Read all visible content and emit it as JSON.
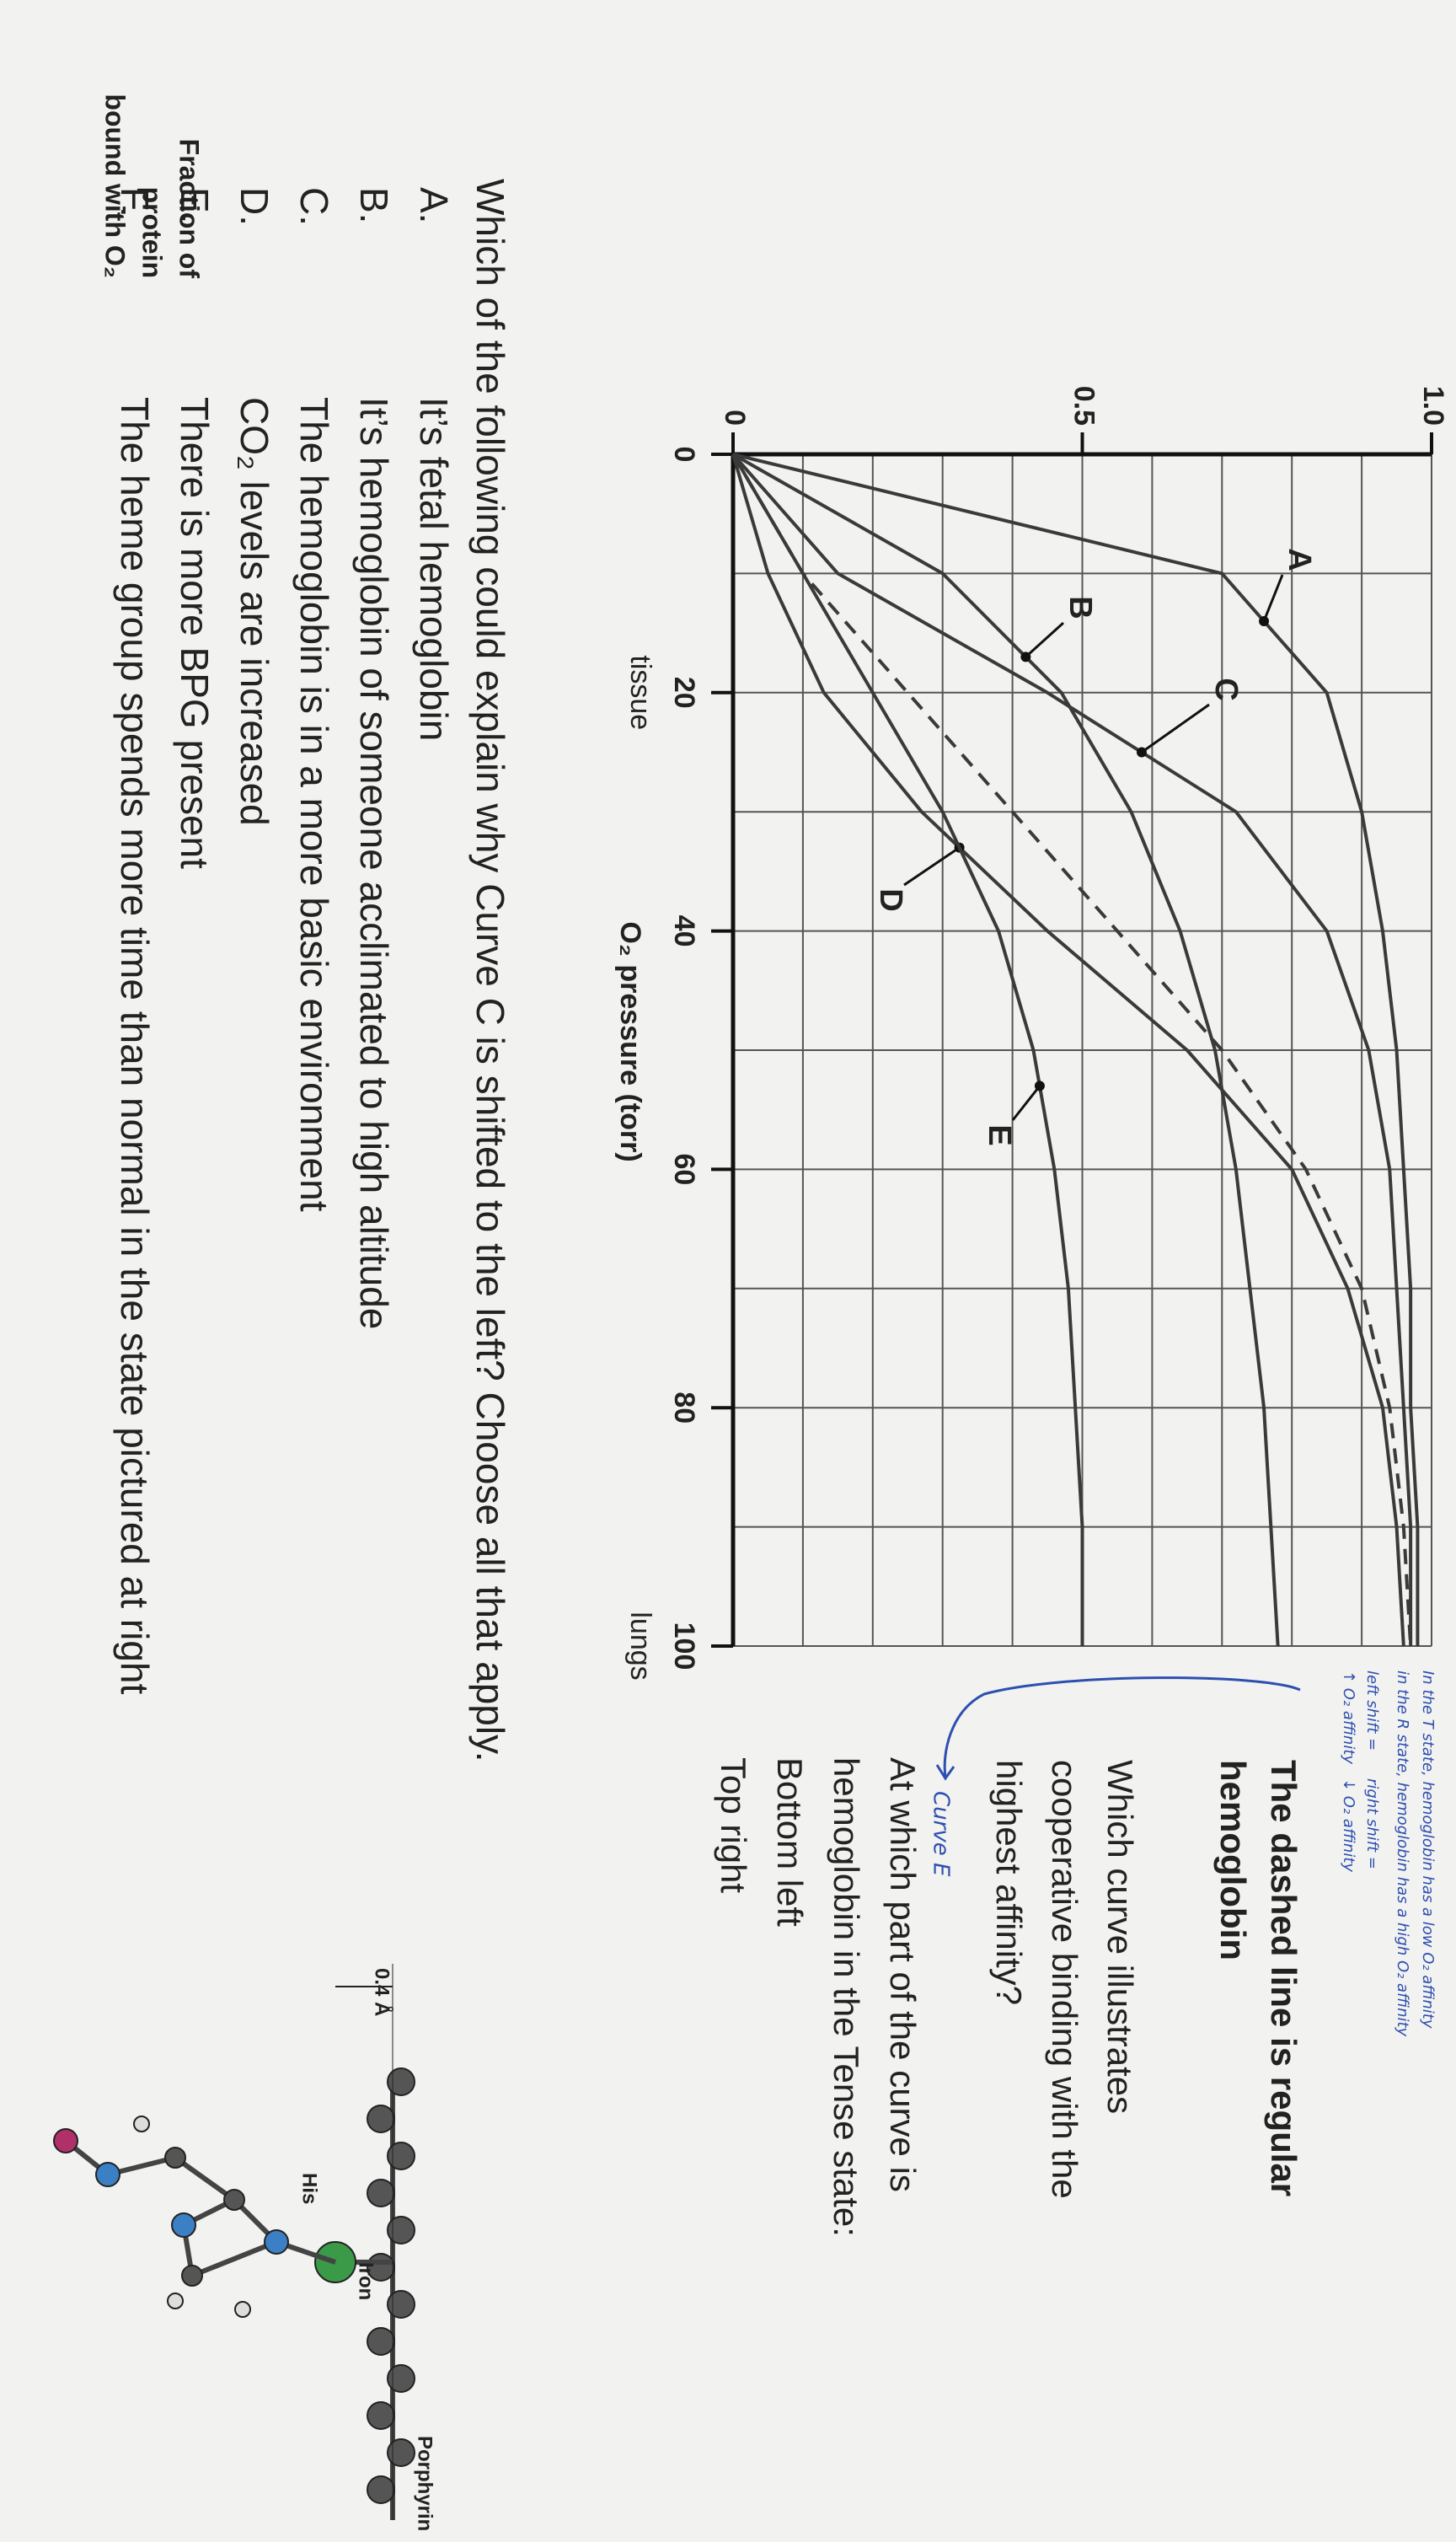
{
  "chart_data": {
    "type": "line",
    "y_label": [
      "Fraction of",
      "protein",
      "bound with O₂"
    ],
    "x_label": "O₂ pressure (torr)",
    "x": [
      0,
      10,
      20,
      30,
      40,
      50,
      60,
      70,
      80,
      90,
      100
    ],
    "xlim": [
      0,
      100
    ],
    "xticks": [
      0,
      20,
      40,
      60,
      80,
      100
    ],
    "ylim": [
      0,
      1
    ],
    "yticks": [
      0,
      0.5,
      {
        "value": 1,
        "label": "1.0"
      }
    ],
    "grid": true,
    "annotations": [
      {
        "text": "tissue",
        "x": 20
      },
      {
        "text": "lungs",
        "x": 100
      }
    ],
    "series": [
      {
        "name": "A",
        "color": "#3a3a3a",
        "values": [
          0,
          0.7,
          0.85,
          0.9,
          0.93,
          0.95,
          0.96,
          0.97,
          0.97,
          0.98,
          0.98
        ]
      },
      {
        "name": "B",
        "color": "#3a3a3a",
        "values": [
          0,
          0.3,
          0.47,
          0.57,
          0.64,
          0.69,
          0.72,
          0.74,
          0.76,
          0.77,
          0.78
        ]
      },
      {
        "name": "C",
        "color": "#3a3a3a",
        "values": [
          0,
          0.15,
          0.45,
          0.72,
          0.85,
          0.91,
          0.94,
          0.95,
          0.96,
          0.97,
          0.97
        ]
      },
      {
        "name": "D",
        "color": "#3a3a3a",
        "values": [
          0,
          0.05,
          0.13,
          0.27,
          0.45,
          0.65,
          0.8,
          0.88,
          0.93,
          0.95,
          0.96
        ]
      },
      {
        "name": "E",
        "color": "#3a3a3a",
        "values": [
          0,
          0.1,
          0.2,
          0.3,
          0.38,
          0.43,
          0.46,
          0.48,
          0.49,
          0.5,
          0.5
        ]
      },
      {
        "color": "#3a3a3a",
        "dashed": true,
        "values": [
          0,
          0.1,
          0.25,
          0.4,
          0.55,
          0.7,
          0.82,
          0.9,
          0.94,
          0.96,
          0.97
        ]
      }
    ]
  },
  "notes": {
    "handwritten": [
      "In the T state, hemoglobin has a low O₂ affinity",
      "in the R state, hemoglobin has a high O₂ affinity",
      "left shift =",
      "↑ O₂ affinity",
      "right shift =",
      "↓ O₂ affinity"
    ],
    "curve_answer": "Curve E"
  },
  "side": {
    "dashed_note": [
      "The dashed line is regular",
      "hemoglobin"
    ],
    "q1": [
      "Which curve illustrates",
      "cooperative binding with the",
      "highest affinity?"
    ],
    "q2": [
      "At which part of the curve is",
      "hemoglobin in the Tense state:",
      "Bottom left",
      "Top right"
    ]
  },
  "question": {
    "prompt": "Which of the following could explain why Curve C is shifted to the left? Choose all that apply.",
    "options": [
      {
        "letter": "A.",
        "text": "It’s fetal hemoglobin"
      },
      {
        "letter": "B.",
        "text": "It’s hemoglobin of someone acclimated to high altitude"
      },
      {
        "letter": "C.",
        "text": "The hemoglobin is in a more basic environment"
      },
      {
        "letter": "D.",
        "text": "CO₂ levels are increased"
      },
      {
        "letter": "E.",
        "text": "There is more BPG present"
      },
      {
        "letter": "F.",
        "text": "The heme group spends more time than normal in the state pictured at right"
      }
    ]
  },
  "molecule": {
    "porphyrin": "Porphyrin",
    "iron": "Iron",
    "his": "His",
    "distance": "0.4 Å"
  }
}
